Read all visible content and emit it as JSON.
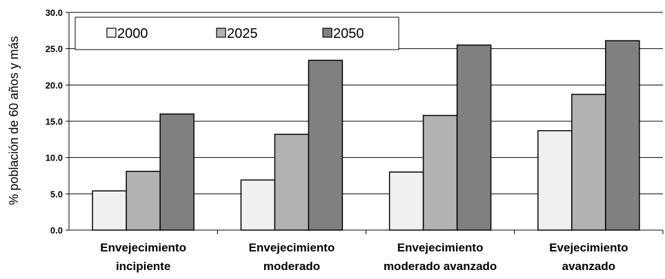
{
  "chart_data": {
    "type": "bar",
    "title": "",
    "xlabel": "",
    "ylabel": "% población de 60 años y más",
    "ylim": [
      0,
      30
    ],
    "yticks": [
      "0.0",
      "5.0",
      "10.0",
      "15.0",
      "20.0",
      "25.0",
      "30.0"
    ],
    "grid": true,
    "legend_position": "top-left",
    "categories": [
      [
        "Envejecimiento",
        "incipiente"
      ],
      [
        "Envejecimiento",
        "moderado"
      ],
      [
        "Envejecimiento",
        "moderado avanzado"
      ],
      [
        "Evejecimiento",
        "avanzado"
      ]
    ],
    "series": [
      {
        "name": "2000",
        "color": "#f0f0f0",
        "values": [
          5.4,
          6.9,
          8.0,
          13.7
        ]
      },
      {
        "name": "2025",
        "color": "#b2b2b2",
        "values": [
          8.1,
          13.2,
          15.8,
          18.7
        ]
      },
      {
        "name": "2050",
        "color": "#808080",
        "values": [
          16.0,
          23.4,
          25.5,
          26.1
        ]
      }
    ]
  }
}
